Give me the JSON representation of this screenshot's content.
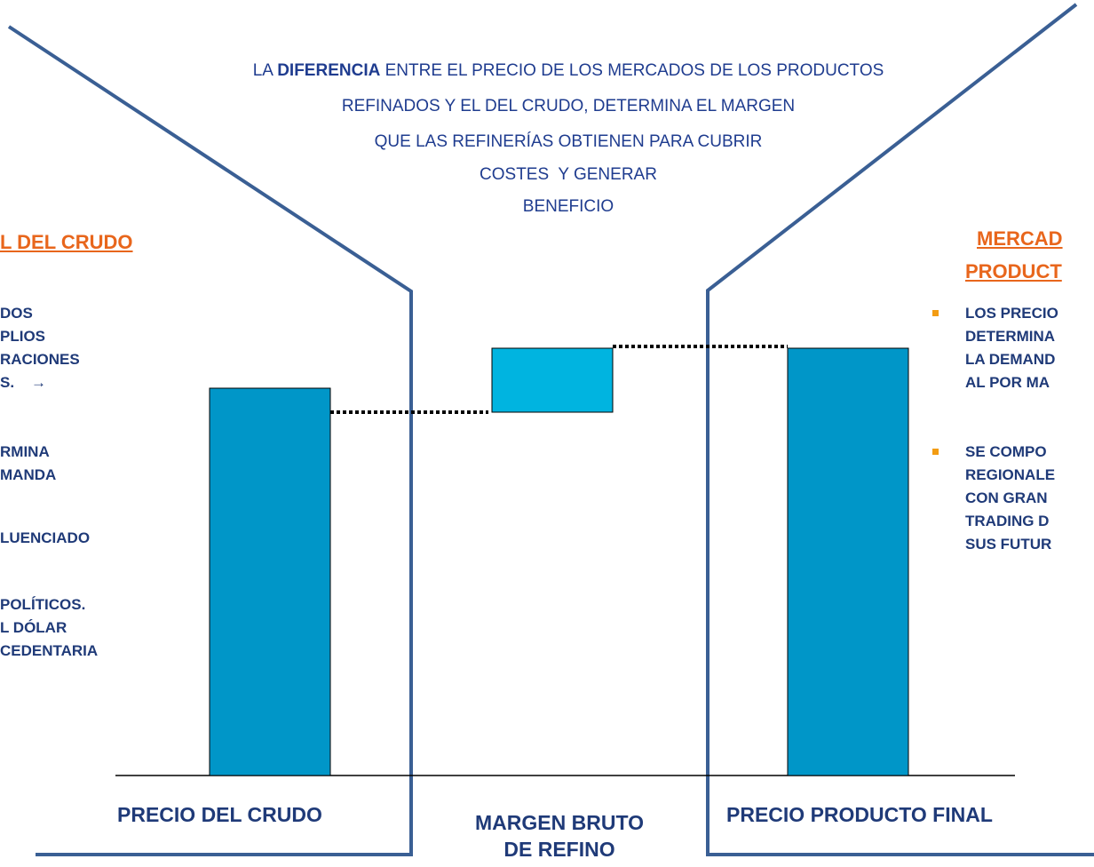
{
  "intro": {
    "line0": [
      "LA ",
      "DIFERENCIA",
      " ENTRE EL PRECIO DE LOS MERCADOS DE LOS PRODUCTOS"
    ],
    "lines": [
      "REFINADOS Y EL DEL CRUDO, DETERMINA EL MARGEN",
      "QUE LAS REFINERÍAS OBTIENEN PARA CUBRIR",
      "COSTES  Y GENERAR",
      "BENEFICIO"
    ]
  },
  "left": {
    "heading": "L DEL CRUDO",
    "lines": [
      "DOS",
      "PLIOS",
      "RACIONES",
      "S.    →",
      "RMINA",
      "MANDA",
      "LUENCIADO",
      "POLÍTICOS.",
      "L DÓLAR",
      "CEDENTARIA"
    ]
  },
  "right": {
    "heading": [
      "MERCAD",
      "PRODUCT"
    ],
    "bullets": [
      [
        "LOS PRECIO",
        "DETERMINA",
        "LA DEMAND",
        "AL POR MA"
      ],
      [
        "SE COMPO",
        "REGIONALE",
        "CON GRAN",
        "TRADING D",
        "SUS FUTUR"
      ]
    ]
  },
  "labels": {
    "crude": "PRECIO DEL CRUDO",
    "margin": [
      "MARGEN BRUTO",
      "DE REFINO"
    ],
    "final": "PRECIO PRODUCTO FINAL"
  }
}
